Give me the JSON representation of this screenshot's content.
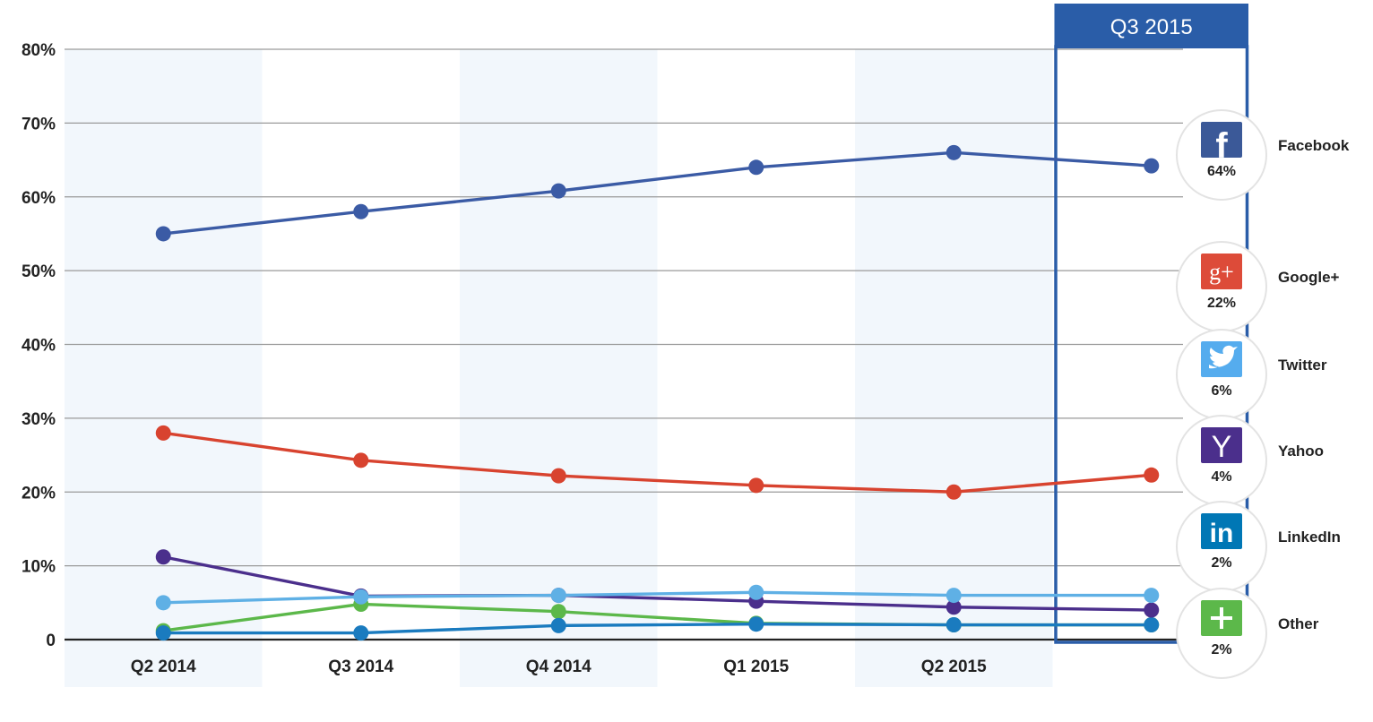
{
  "chart_data": {
    "type": "line",
    "categories": [
      "Q2 2014",
      "Q3 2014",
      "Q4 2014",
      "Q1 2015",
      "Q2 2015",
      "Q3 2015"
    ],
    "x_tick_labels": [
      "Q2 2014",
      "Q3 2014",
      "Q4 2014",
      "Q1 2015",
      "Q2 2015"
    ],
    "y_ticks": [
      0,
      10,
      20,
      30,
      40,
      50,
      60,
      70,
      80
    ],
    "y_tick_labels": [
      "0",
      "10%",
      "20%",
      "30%",
      "40%",
      "50%",
      "60%",
      "70%",
      "80%"
    ],
    "ylim": [
      0,
      80
    ],
    "grid": true,
    "highlight": {
      "label": "Q3 2015",
      "category": "Q3 2015",
      "color": "#2a5da8"
    },
    "legend_position": "right",
    "series": [
      {
        "name": "Facebook",
        "key": "facebook",
        "color": "#3b5ba5",
        "icon": "facebook-icon",
        "icon_color": "#3b5998",
        "icon_glyph": "f",
        "values": [
          55,
          58,
          60.8,
          64,
          66,
          64.2
        ],
        "legend_value": "64%"
      },
      {
        "name": "Google+",
        "key": "googleplus",
        "color": "#d8432f",
        "icon": "google-plus-icon",
        "icon_color": "#dd4b39",
        "icon_glyph": "g+",
        "values": [
          28,
          24.3,
          22.2,
          20.9,
          20,
          22.3
        ],
        "legend_value": "22%"
      },
      {
        "name": "Twitter",
        "key": "twitter",
        "color": "#5fb0e5",
        "icon": "twitter-icon",
        "icon_color": "#55acee",
        "icon_glyph": "bird",
        "values": [
          5,
          5.8,
          6,
          6.4,
          6,
          6
        ],
        "legend_value": "6%"
      },
      {
        "name": "Yahoo",
        "key": "yahoo",
        "color": "#4b2f8c",
        "icon": "yahoo-icon",
        "icon_color": "#4b2f8c",
        "icon_glyph": "Y",
        "values": [
          11.2,
          5.9,
          6,
          5.2,
          4.4,
          4
        ],
        "legend_value": "4%"
      },
      {
        "name": "LinkedIn",
        "key": "linkedin",
        "color": "#1a7bbf",
        "icon": "linkedin-icon",
        "icon_color": "#0077b5",
        "icon_glyph": "in",
        "values": [
          0.9,
          0.9,
          1.9,
          2.1,
          2,
          2
        ],
        "legend_value": "2%"
      },
      {
        "name": "Other",
        "key": "other",
        "color": "#5cb84a",
        "icon": "plus-icon",
        "icon_color": "#5cb84a",
        "icon_glyph": "+",
        "values": [
          1.2,
          4.8,
          3.8,
          2.2,
          2,
          2
        ],
        "legend_value": "2%"
      }
    ]
  }
}
